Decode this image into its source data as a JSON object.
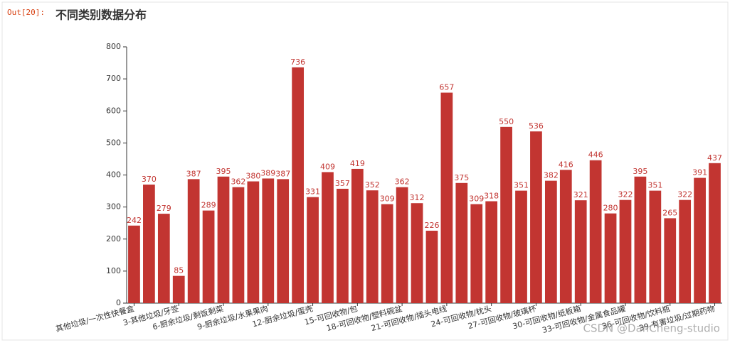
{
  "out_label": "Out[20]:",
  "watermark": "CSDN @DanCheng-studio",
  "chart_data": {
    "type": "bar",
    "title": "不同类别数据分布",
    "categories": [
      "其他垃圾/一次性快餐盒",
      null,
      null,
      "3-其他垃圾/牙签",
      null,
      null,
      "6-厨余垃圾/剩饭剩菜",
      null,
      null,
      "9-厨余垃圾/水果果肉",
      null,
      null,
      "12-厨余垃圾/蛋壳",
      null,
      null,
      "15-可回收物/包",
      null,
      null,
      "18-可回收物/塑料碗盆",
      null,
      null,
      "21-可回收物/插头电线",
      null,
      null,
      "24-可回收物/枕头",
      null,
      null,
      "27-可回收物/玻璃杯",
      null,
      null,
      "30-可回收物/纸板箱",
      null,
      null,
      "33-可回收物/金属食品罐",
      null,
      null,
      "36-可回收物/饮料瓶",
      null,
      null,
      "39-有害垃圾/过期药物"
    ],
    "values": [
      242,
      370,
      279,
      85,
      387,
      289,
      395,
      362,
      380,
      389,
      387,
      736,
      331,
      409,
      357,
      419,
      352,
      309,
      362,
      312,
      226,
      657,
      375,
      309,
      318,
      550,
      351,
      536,
      382,
      416,
      321,
      446,
      280,
      322,
      395,
      351,
      265,
      322,
      391,
      437
    ],
    "color": "#c23531",
    "ylim": [
      0,
      800
    ],
    "yticks": [
      0,
      100,
      200,
      300,
      400,
      500,
      600,
      700,
      800
    ],
    "grid": false
  }
}
